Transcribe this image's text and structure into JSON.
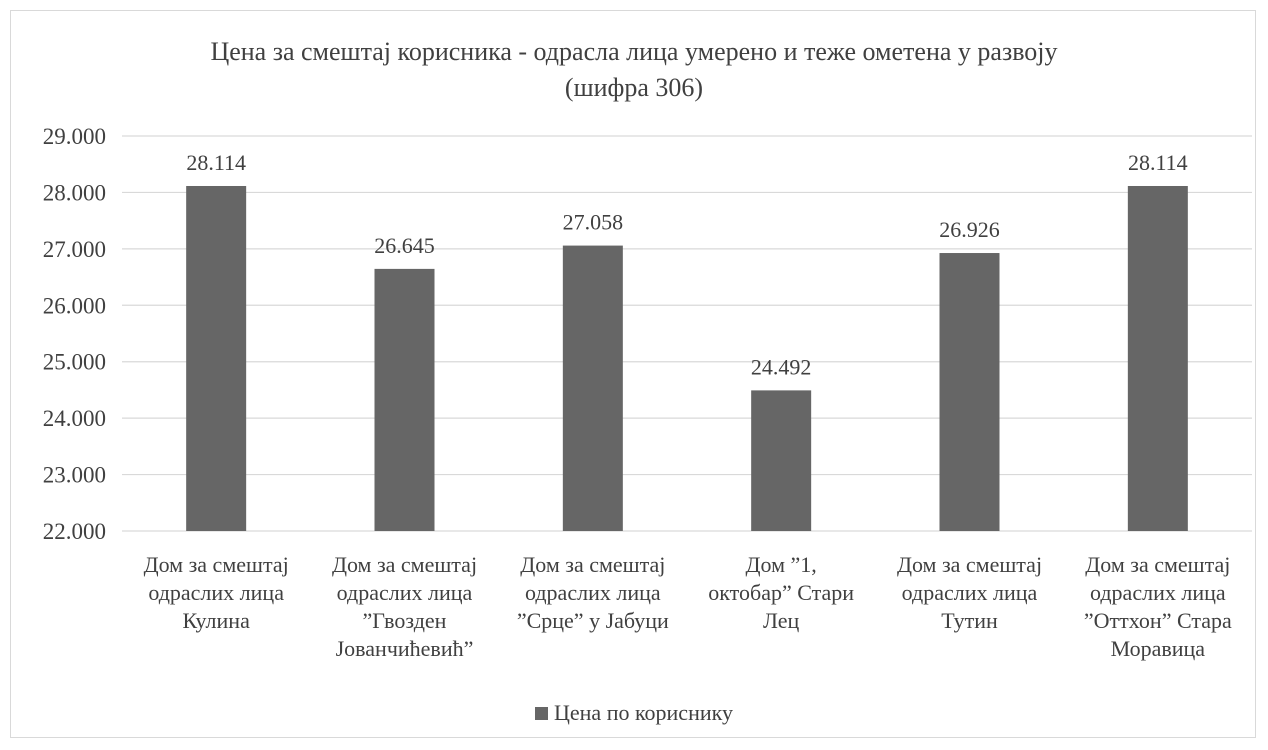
{
  "chart_data": {
    "type": "bar",
    "title": "Цена за смештај корисника - одрасла лица умерено и теже ометена у развоју",
    "subtitle": "(шифра 306)",
    "categories": [
      [
        "Дом за смештај",
        "одраслих лица",
        "Кулина"
      ],
      [
        "Дом за смештај",
        "одраслих лица",
        "”Гвозден",
        "Јованчићевић”"
      ],
      [
        "Дом за смештај",
        "одраслих лица",
        "”Срце” у Јабуци"
      ],
      [
        "Дом ”1,",
        "октобар” Стари",
        "Лец"
      ],
      [
        "Дом за смештај",
        "одраслих лица",
        "Тутин"
      ],
      [
        "Дом за смештај",
        "одраслих лица",
        "”Оттхон” Стара",
        "Моравица"
      ]
    ],
    "series": [
      {
        "name": "Цена по кориснику",
        "values": [
          28114,
          26645,
          27058,
          24492,
          26926,
          28114
        ],
        "labels": [
          "28.114",
          "26.645",
          "27.058",
          "24.492",
          "26.926",
          "28.114"
        ],
        "color": "#666666"
      }
    ],
    "ylim": [
      22000,
      29000
    ],
    "yticks": [
      22000,
      23000,
      24000,
      25000,
      26000,
      27000,
      28000,
      29000
    ],
    "ytick_labels": [
      "22.000",
      "23.000",
      "24.000",
      "25.000",
      "26.000",
      "27.000",
      "28.000",
      "29.000"
    ],
    "xlabel": "",
    "ylabel": "",
    "grid": true,
    "legend_position": "bottom",
    "gridline_color": "#d9d9d9"
  }
}
